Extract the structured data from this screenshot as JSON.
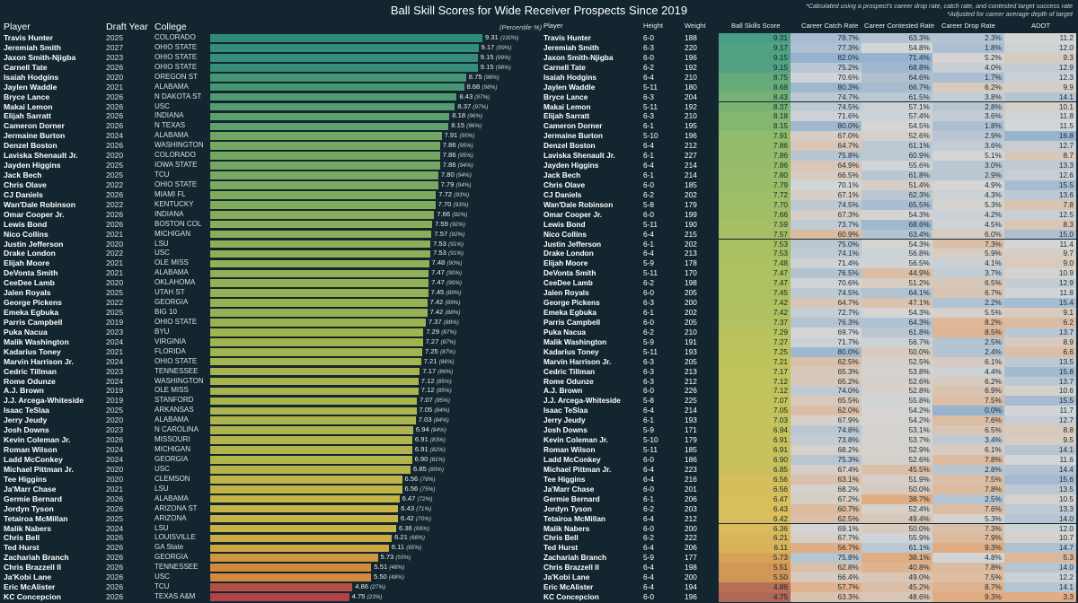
{
  "title": "Ball Skill Scores for Wide Receiver Prospects Since 2019",
  "footnotes": [
    "*Calculated using a prospect's career drop rate, catch rate, and contested target success rate",
    "*Adjusted for career average depth of target"
  ],
  "left_headers": {
    "player": "Player",
    "year": "Draft Year",
    "college": "College",
    "percentile_note": "(Percentile %)"
  },
  "right_headers": {
    "player": "Player",
    "height": "Height",
    "weight": "Weight",
    "score": "Ball Skills Score",
    "catch": "Career Catch Rate",
    "contested": "Career Contested Rate",
    "drop": "Career Drop Rate",
    "adot": "ADOT"
  },
  "colors": {
    "background": "#13262f",
    "bar_high": "#2f8a7c",
    "bar_mid": "#b8bc48",
    "bar_low": "#d28a3e",
    "bar_min": "#b0444a"
  },
  "chart_data": {
    "type": "bar",
    "xlim": [
      0,
      10
    ],
    "categories": [
      "Travis Hunter",
      "Jeremiah Smith",
      "Jaxon Smith-Njigba",
      "Carnell Tate",
      "Isaiah Hodgins",
      "Jaylen Waddle",
      "Bryce Lance",
      "Makai Lemon",
      "Elijah Sarratt",
      "Cameron Dorner",
      "Jermaine Burton",
      "Denzel Boston",
      "Laviska Shenault Jr.",
      "Jayden Higgins",
      "Jack Bech",
      "Chris Olave",
      "CJ Daniels",
      "Wan'Dale Robinson",
      "Omar Cooper Jr.",
      "Lewis Bond",
      "Nico Collins",
      "Justin Jefferson",
      "Drake London",
      "Elijah Moore",
      "DeVonta Smith",
      "CeeDee Lamb",
      "Jalen Royals",
      "George Pickens",
      "Emeka Egbuka",
      "Parris Campbell",
      "Puka Nacua",
      "Malik Washington",
      "Kadarius Toney",
      "Marvin Harrison Jr.",
      "Cedric Tillman",
      "Rome Odunze",
      "A.J. Brown",
      "J.J. Arcega-Whiteside",
      "Isaac TeSlaa",
      "Jerry Jeudy",
      "Josh Downs",
      "Kevin Coleman Jr.",
      "Roman Wilson",
      "Ladd McConkey",
      "Michael Pittman Jr.",
      "Tee Higgins",
      "Ja'Marr Chase",
      "Germie Bernard",
      "Jordyn Tyson",
      "Tetairoa McMillan",
      "Malik Nabers",
      "Chris Bell",
      "Ted Hurst",
      "Zachariah Branch",
      "Chris Brazzell II",
      "Ja'Kobi Lane",
      "Eric McAlister",
      "KC Concepcion"
    ],
    "years": [
      "2025",
      "2027",
      "2023",
      "2026",
      "2020",
      "2021",
      "2026",
      "2026",
      "2026",
      "2026",
      "2024",
      "2026",
      "2020",
      "2025",
      "2025",
      "2022",
      "2026",
      "2022",
      "2026",
      "2026",
      "2021",
      "2020",
      "2022",
      "2021",
      "2021",
      "2020",
      "2025",
      "2022",
      "2025",
      "2019",
      "2023",
      "2024",
      "2021",
      "2024",
      "2023",
      "2024",
      "2019",
      "2019",
      "2025",
      "2020",
      "2023",
      "2026",
      "2024",
      "2024",
      "2020",
      "2020",
      "2021",
      "2026",
      "2026",
      "2025",
      "2024",
      "2026",
      "2026",
      "2026",
      "2026",
      "2026",
      "2026",
      "2026"
    ],
    "colleges": [
      "COLORADO",
      "OHIO STATE",
      "OHIO STATE",
      "OHIO STATE",
      "OREGON ST",
      "ALABAMA",
      "N DAKOTA ST",
      "USC",
      "INDIANA",
      "N TEXAS",
      "ALABAMA",
      "WASHINGTON",
      "COLORADO",
      "IOWA STATE",
      "TCU",
      "OHIO STATE",
      "MIAMI FL",
      "KENTUCKY",
      "INDIANA",
      "BOSTON COL",
      "MICHIGAN",
      "LSU",
      "USC",
      "OLE MISS",
      "ALABAMA",
      "OKLAHOMA",
      "UTAH ST",
      "GEORGIA",
      "BIG 10",
      "OHIO STATE",
      "BYU",
      "VIRGINIA",
      "FLORIDA",
      "OHIO STATE",
      "TENNESSEE",
      "WASHINGTON",
      "OLE MISS",
      "STANFORD",
      "ARKANSAS",
      "ALABAMA",
      "N CAROLINA",
      "MISSOURI",
      "MICHIGAN",
      "GEORGIA",
      "USC",
      "CLEMSON",
      "LSU",
      "ALABAMA",
      "ARIZONA ST",
      "ARIZONA",
      "LSU",
      "LOUISVILLE",
      "GA State",
      "GEORGIA",
      "TENNESSEE",
      "USC",
      "TCU",
      "TEXAS A&M"
    ],
    "values": [
      9.31,
      9.17,
      9.15,
      9.15,
      8.75,
      8.68,
      8.43,
      8.37,
      8.18,
      8.15,
      7.91,
      7.86,
      7.86,
      7.86,
      7.8,
      7.79,
      7.72,
      7.7,
      7.66,
      7.59,
      7.57,
      7.53,
      7.53,
      7.48,
      7.47,
      7.47,
      7.45,
      7.42,
      7.42,
      7.37,
      7.29,
      7.27,
      7.25,
      7.21,
      7.17,
      7.12,
      7.12,
      7.07,
      7.05,
      7.03,
      6.94,
      6.91,
      6.91,
      6.9,
      6.85,
      6.56,
      6.56,
      6.47,
      6.43,
      6.42,
      6.36,
      6.21,
      6.11,
      5.73,
      5.51,
      5.5,
      4.86,
      4.75
    ],
    "value_labels": [
      "9.31",
      "9.17",
      "9.15",
      "9.15",
      "8.75",
      "8.68",
      "8.43",
      "8.37",
      "8.18",
      "8.15",
      "7.91",
      "7.86",
      "7.86",
      "7.86",
      "7.80",
      "7.79",
      "7.72",
      "7.70",
      "7.66",
      "7.59",
      "7.57",
      "7.53",
      "7.53",
      "7.48",
      "7.47",
      "7.47",
      "7.45",
      "7.42",
      "7.42",
      "7.37",
      "7.29",
      "7.27",
      "7.25",
      "7.21",
      "7.17",
      "7.12",
      "7.12",
      "7.07",
      "7.05",
      "7.03",
      "6.94",
      "6.91",
      "6.91",
      "6.90",
      "6.85",
      "6.56",
      "6.56",
      "6.47",
      "6.43",
      "6.42",
      "6.36",
      "6.21",
      "6.11",
      "5.73",
      "5.51",
      "5.50",
      "4.86",
      "4.75"
    ],
    "percentiles": [
      "(100%)",
      "(99%)",
      "(99%)",
      "(98%)",
      "(98%)",
      "(98%)",
      "(97%)",
      "(97%)",
      "(96%)",
      "(96%)",
      "(95%)",
      "(95%)",
      "(95%)",
      "(94%)",
      "(94%)",
      "(94%)",
      "(93%)",
      "(93%)",
      "(92%)",
      "(92%)",
      "(92%)",
      "(91%)",
      "(91%)",
      "(90%)",
      "(90%)",
      "(90%)",
      "(89%)",
      "(89%)",
      "(88%)",
      "(88%)",
      "(87%)",
      "(87%)",
      "(87%)",
      "(86%)",
      "(86%)",
      "(85%)",
      "(85%)",
      "(85%)",
      "(84%)",
      "(84%)",
      "(84%)",
      "(83%)",
      "(82%)",
      "(81%)",
      "(80%)",
      "(76%)",
      "(75%)",
      "(72%)",
      "(71%)",
      "(70%)",
      "(69%)",
      "(68%)",
      "(65%)",
      "(55%)",
      "(48%)",
      "(48%)",
      "(27%)",
      "(23%)"
    ],
    "table": {
      "heights": [
        "6-0",
        "6-3",
        "6-0",
        "6-2",
        "6-4",
        "5-11",
        "6-3",
        "5-11",
        "6-3",
        "6-1",
        "5-10",
        "6-4",
        "6-1",
        "6-4",
        "6-1",
        "6-0",
        "6-2",
        "5-8",
        "6-0",
        "5-11",
        "6-4",
        "6-1",
        "6-4",
        "5-9",
        "5-11",
        "6-2",
        "6-0",
        "6-3",
        "6-1",
        "6-0",
        "6-2",
        "5-9",
        "5-11",
        "6-3",
        "6-3",
        "6-3",
        "6-0",
        "5-8",
        "6-4",
        "6-1",
        "5-9",
        "5-10",
        "5-11",
        "6-0",
        "6-4",
        "6-4",
        "6-0",
        "6-1",
        "6-2",
        "6-4",
        "6-0",
        "6-2",
        "6-4",
        "5-9",
        "6-4",
        "6-4",
        "6-4",
        "6-0"
      ],
      "weights": [
        "188",
        "220",
        "196",
        "192",
        "210",
        "180",
        "204",
        "192",
        "210",
        "195",
        "196",
        "212",
        "227",
        "214",
        "214",
        "185",
        "202",
        "179",
        "199",
        "190",
        "215",
        "202",
        "213",
        "178",
        "170",
        "198",
        "205",
        "200",
        "202",
        "205",
        "210",
        "191",
        "193",
        "205",
        "213",
        "212",
        "226",
        "225",
        "214",
        "193",
        "171",
        "179",
        "185",
        "186",
        "223",
        "216",
        "201",
        "206",
        "203",
        "212",
        "200",
        "222",
        "206",
        "177",
        "198",
        "200",
        "194",
        "196"
      ],
      "catch_rate": [
        "78.7%",
        "77.3%",
        "82.0%",
        "75.2%",
        "70.6%",
        "80.3%",
        "74.7%",
        "74.5%",
        "71.6%",
        "80.0%",
        "67.0%",
        "64.7%",
        "75.8%",
        "64.9%",
        "66.5%",
        "70.1%",
        "67.1%",
        "74.5%",
        "67.3%",
        "73.7%",
        "60.9%",
        "75.0%",
        "74.1%",
        "71.4%",
        "76.5%",
        "70.6%",
        "74.5%",
        "64.7%",
        "72.7%",
        "76.3%",
        "69.7%",
        "71.7%",
        "80.0%",
        "62.5%",
        "65.3%",
        "65.2%",
        "74.0%",
        "65.5%",
        "62.0%",
        "67.9%",
        "74.8%",
        "73.8%",
        "68.2%",
        "75.3%",
        "67.4%",
        "63.1%",
        "68.2%",
        "67.2%",
        "60.7%",
        "62.5%",
        "69.1%",
        "67.7%",
        "56.7%",
        "75.8%",
        "62.8%",
        "66.4%",
        "57.7%",
        "63.3%"
      ],
      "contested_rate": [
        "63.3%",
        "54.8%",
        "71.4%",
        "68.8%",
        "64.6%",
        "66.7%",
        "61.5%",
        "57.1%",
        "57.4%",
        "54.5%",
        "52.6%",
        "61.1%",
        "60.9%",
        "55.6%",
        "61.8%",
        "51.4%",
        "62.3%",
        "65.5%",
        "54.3%",
        "68.6%",
        "63.4%",
        "54.3%",
        "56.8%",
        "56.5%",
        "44.9%",
        "51.2%",
        "64.1%",
        "47.1%",
        "54.3%",
        "64.3%",
        "61.8%",
        "56.7%",
        "50.0%",
        "52.5%",
        "53.8%",
        "52.6%",
        "52.8%",
        "55.8%",
        "54.2%",
        "54.2%",
        "53.1%",
        "53.7%",
        "52.9%",
        "52.6%",
        "45.5%",
        "51.9%",
        "50.0%",
        "38.7%",
        "52.4%",
        "49.4%",
        "50.0%",
        "55.9%",
        "61.1%",
        "38.1%",
        "40.8%",
        "49.0%",
        "45.2%",
        "48.6%"
      ],
      "drop_rate": [
        "2.3%",
        "1.8%",
        "5.2%",
        "4.0%",
        "1.7%",
        "6.2%",
        "3.8%",
        "2.8%",
        "3.6%",
        "1.8%",
        "2.9%",
        "3.6%",
        "5.1%",
        "3.0%",
        "2.9%",
        "4.9%",
        "4.3%",
        "5.3%",
        "4.2%",
        "4.5%",
        "6.0%",
        "7.3%",
        "5.9%",
        "4.1%",
        "3.7%",
        "6.5%",
        "6.7%",
        "2.2%",
        "5.5%",
        "8.2%",
        "8.5%",
        "2.5%",
        "2.4%",
        "6.1%",
        "4.4%",
        "6.2%",
        "6.9%",
        "7.5%",
        "0.0%",
        "7.6%",
        "6.5%",
        "3.4%",
        "6.1%",
        "7.8%",
        "2.8%",
        "7.5%",
        "7.8%",
        "2.5%",
        "7.6%",
        "5.3%",
        "7.3%",
        "7.9%",
        "9.3%",
        "4.8%",
        "7.8%",
        "7.5%",
        "8.7%",
        "9.3%"
      ],
      "adot": [
        "11.2",
        "12.0",
        "9.3",
        "12.9",
        "12.3",
        "9.9",
        "14.1",
        "10.1",
        "11.8",
        "11.5",
        "16.8",
        "12.7",
        "8.7",
        "13.3",
        "12.6",
        "15.5",
        "13.6",
        "7.8",
        "12.5",
        "8.3",
        "15.0",
        "11.4",
        "9.7",
        "9.0",
        "10.9",
        "12.9",
        "11.8",
        "15.4",
        "9.1",
        "6.2",
        "13.7",
        "8.9",
        "6.6",
        "13.5",
        "15.8",
        "13.7",
        "10.6",
        "15.5",
        "11.7",
        "12.7",
        "8.8",
        "9.5",
        "14.1",
        "11.6",
        "14.4",
        "15.6",
        "13.5",
        "10.5",
        "13.3",
        "14.0",
        "12.0",
        "10.7",
        "14.7",
        "5.3",
        "14.0",
        "12.2",
        "14.1",
        "3.3"
      ]
    }
  }
}
